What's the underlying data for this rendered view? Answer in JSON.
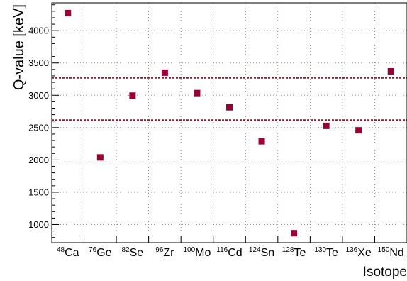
{
  "chart_data": {
    "type": "scatter",
    "title": "",
    "xlabel": "Isotope",
    "ylabel": "Q-value [keV]",
    "categories": [
      {
        "mass": "48",
        "symbol": "Ca"
      },
      {
        "mass": "76",
        "symbol": "Ge"
      },
      {
        "mass": "82",
        "symbol": "Se"
      },
      {
        "mass": "96",
        "symbol": "Zr"
      },
      {
        "mass": "100",
        "symbol": "Mo"
      },
      {
        "mass": "116",
        "symbol": "Cd"
      },
      {
        "mass": "124",
        "symbol": "Sn"
      },
      {
        "mass": "128",
        "symbol": "Te"
      },
      {
        "mass": "130",
        "symbol": "Te"
      },
      {
        "mass": "136",
        "symbol": "Xe"
      },
      {
        "mass": "150",
        "symbol": "Nd"
      }
    ],
    "values": [
      4272,
      2039,
      2995,
      3350,
      3034,
      2814,
      2288,
      866,
      2527,
      2458,
      3371
    ],
    "ylim": [
      720,
      4430
    ],
    "yticks": [
      1000,
      1500,
      2000,
      2500,
      3000,
      3500,
      4000
    ],
    "reference_lines": [
      2615,
      3270
    ],
    "grid": true,
    "colors": {
      "marker": "#990033",
      "reference_line": "#8b1a2b",
      "grid": "#7f7f7f"
    }
  }
}
